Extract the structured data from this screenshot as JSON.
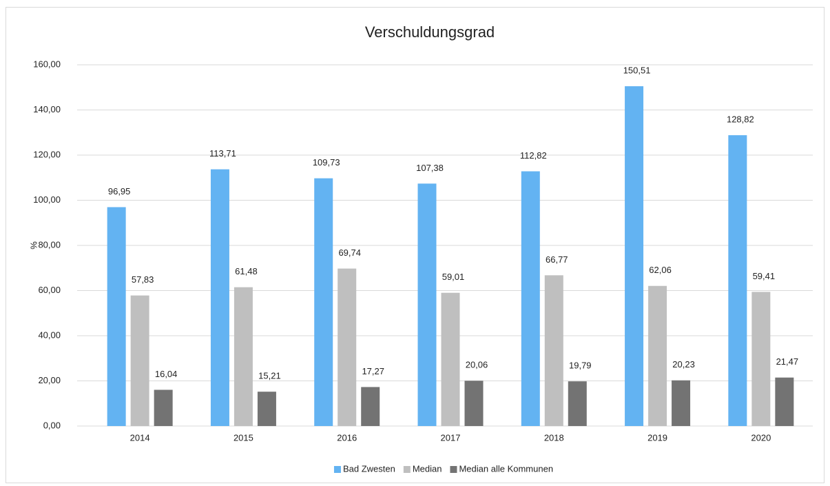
{
  "chart_data": {
    "type": "bar",
    "title": "Verschuldungsgrad",
    "y_label": "%",
    "categories": [
      "2014",
      "2015",
      "2016",
      "2017",
      "2018",
      "2019",
      "2020"
    ],
    "series": [
      {
        "name": "Bad Zwesten",
        "color": "#63b3f2",
        "values": [
          96.95,
          113.71,
          109.73,
          107.38,
          112.82,
          150.51,
          128.82
        ],
        "value_labels": [
          "96,95",
          "113,71",
          "109,73",
          "107,38",
          "112,82",
          "150,51",
          "128,82"
        ]
      },
      {
        "name": "Median",
        "color": "#bfbfbf",
        "values": [
          57.83,
          61.48,
          69.74,
          59.01,
          66.77,
          62.06,
          59.41
        ],
        "value_labels": [
          "57,83",
          "61,48",
          "69,74",
          "59,01",
          "66,77",
          "62,06",
          "59,41"
        ]
      },
      {
        "name": "Median alle Kommunen",
        "color": "#737373",
        "values": [
          16.04,
          15.21,
          17.27,
          20.06,
          19.79,
          20.23,
          21.47
        ],
        "value_labels": [
          "16,04",
          "15,21",
          "17,27",
          "20,06",
          "19,79",
          "20,23",
          "21,47"
        ]
      }
    ],
    "ylim": [
      0,
      160
    ],
    "yticks": [
      {
        "value": 0,
        "label": "0,00"
      },
      {
        "value": 20,
        "label": "20,00"
      },
      {
        "value": 40,
        "label": "40,00"
      },
      {
        "value": 60,
        "label": "60,00"
      },
      {
        "value": 80,
        "label": "80,00"
      },
      {
        "value": 100,
        "label": "100,00"
      },
      {
        "value": 120,
        "label": "120,00"
      },
      {
        "value": 140,
        "label": "140,00"
      },
      {
        "value": 160,
        "label": "160,00"
      }
    ],
    "grid": true,
    "legend": "bottom"
  }
}
